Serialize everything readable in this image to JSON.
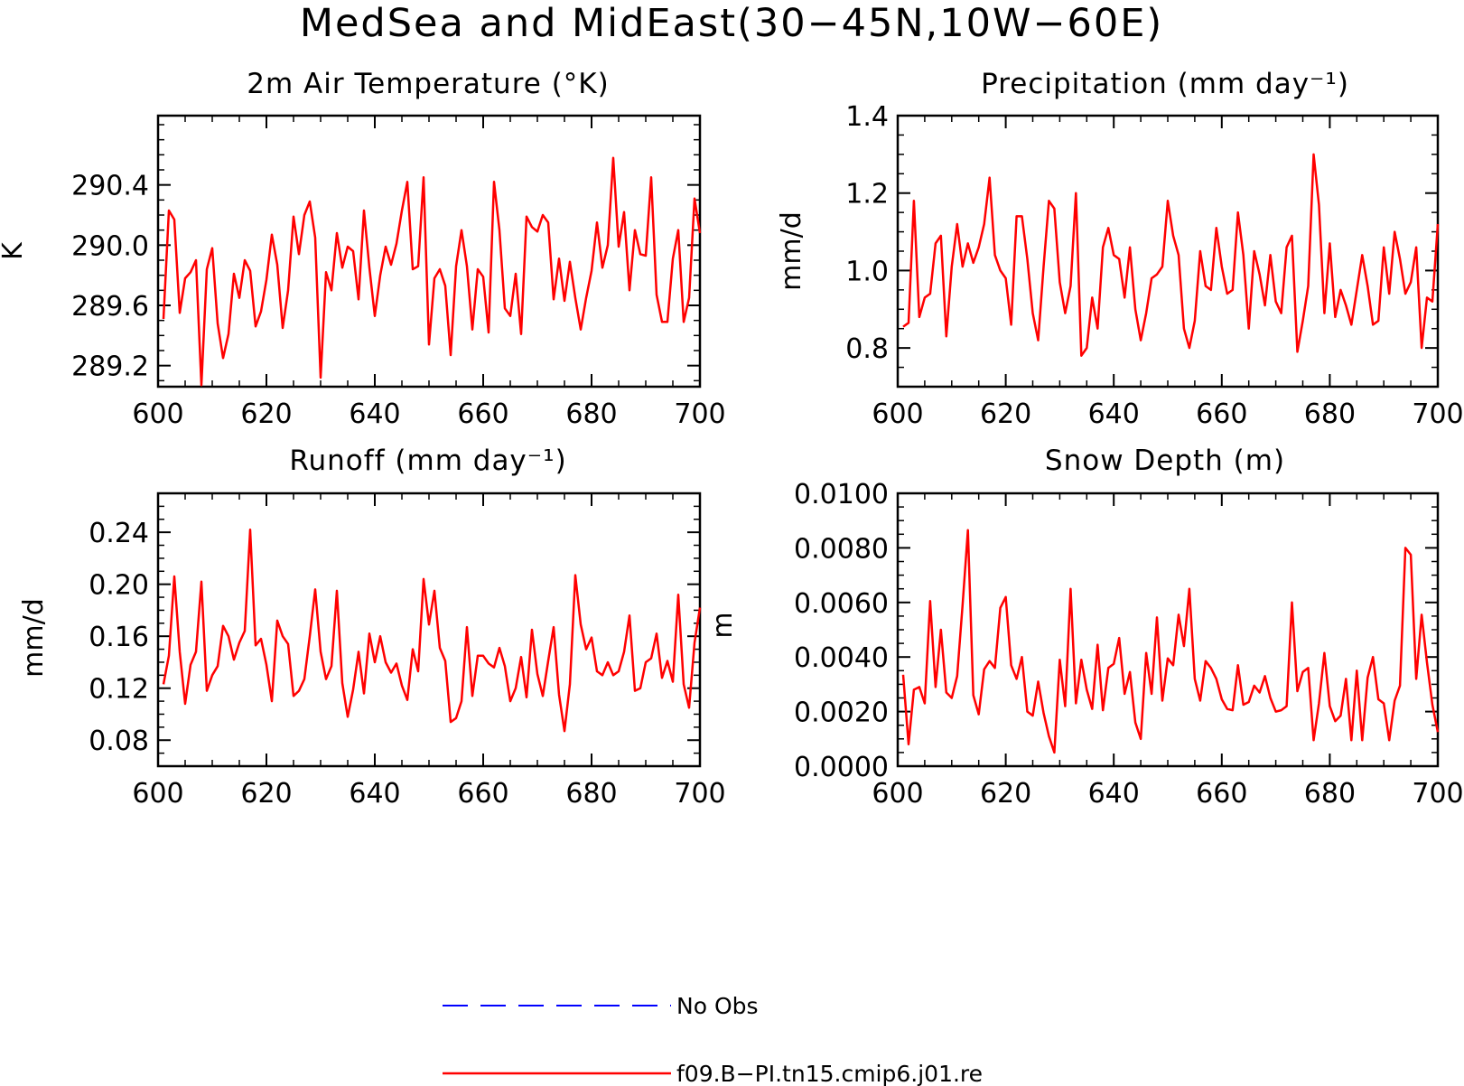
{
  "title": "MedSea and MidEast(30−45N,10W−60E)",
  "legend": [
    {
      "label": "No Obs",
      "color": "#0000ff",
      "dash": true
    },
    {
      "label": "f09.B−PI.tn15.cmip6.j01.re",
      "color": "#ff0000",
      "dash": false
    }
  ],
  "chart_data": [
    {
      "type": "line",
      "title": "2m Air Temperature (°K)",
      "ylabel": "K",
      "xlim": [
        600,
        700
      ],
      "ylim": [
        289.06,
        290.86
      ],
      "xticks": [
        600,
        620,
        640,
        660,
        680,
        700
      ],
      "yticks": [
        289.2,
        289.6,
        290.0,
        290.4
      ],
      "ytick_labels": [
        "289.2",
        "289.6",
        "290.0",
        "290.4"
      ],
      "x_start": 601,
      "series": [
        {
          "color": "#ff0000",
          "values": [
            289.51,
            290.23,
            290.17,
            289.55,
            289.78,
            289.82,
            289.9,
            289.07,
            289.84,
            289.98,
            289.48,
            289.25,
            289.41,
            289.81,
            289.65,
            289.9,
            289.83,
            289.46,
            289.56,
            289.77,
            290.07,
            289.87,
            289.45,
            289.7,
            290.19,
            289.94,
            290.2,
            290.29,
            290.05,
            289.12,
            289.82,
            289.7,
            290.08,
            289.85,
            289.99,
            289.96,
            289.64,
            290.23,
            289.85,
            289.53,
            289.8,
            289.99,
            289.87,
            290.01,
            290.23,
            290.42,
            289.84,
            289.86,
            290.45,
            289.34,
            289.78,
            289.84,
            289.73,
            289.27,
            289.86,
            290.1,
            289.86,
            289.44,
            289.84,
            289.79,
            289.42,
            290.42,
            290.1,
            289.58,
            289.53,
            289.81,
            289.41,
            290.19,
            290.12,
            290.09,
            290.2,
            290.15,
            289.64,
            289.91,
            289.63,
            289.89,
            289.65,
            289.44,
            289.65,
            289.83,
            290.15,
            289.85,
            290.0,
            290.58,
            289.99,
            290.22,
            289.7,
            290.1,
            289.94,
            289.93,
            290.45,
            289.67,
            289.49,
            289.49,
            289.91,
            290.1,
            289.49,
            289.65,
            290.31,
            290.08
          ]
        }
      ]
    },
    {
      "type": "line",
      "title": "Precipitation (mm day⁻¹)",
      "ylabel": "mm/d",
      "xlim": [
        600,
        700
      ],
      "ylim": [
        0.7,
        1.4
      ],
      "xticks": [
        600,
        620,
        640,
        660,
        680,
        700
      ],
      "yticks": [
        0.8,
        1.0,
        1.2,
        1.4
      ],
      "ytick_labels": [
        "0.8",
        "1.0",
        "1.2",
        "1.4"
      ],
      "x_start": 601,
      "series": [
        {
          "color": "#ff0000",
          "values": [
            0.855,
            0.865,
            1.18,
            0.88,
            0.93,
            0.94,
            1.07,
            1.09,
            0.83,
            1.01,
            1.12,
            1.01,
            1.07,
            1.02,
            1.06,
            1.12,
            1.24,
            1.04,
            1.0,
            0.98,
            0.86,
            1.14,
            1.14,
            1.03,
            0.89,
            0.82,
            1.01,
            1.18,
            1.16,
            0.97,
            0.89,
            0.96,
            1.2,
            0.78,
            0.8,
            0.93,
            0.85,
            1.06,
            1.11,
            1.04,
            1.03,
            0.93,
            1.06,
            0.9,
            0.82,
            0.89,
            0.98,
            0.99,
            1.01,
            1.18,
            1.09,
            1.04,
            0.85,
            0.8,
            0.87,
            1.05,
            0.96,
            0.95,
            1.11,
            1.01,
            0.94,
            0.95,
            1.15,
            1.04,
            0.85,
            1.05,
            0.99,
            0.91,
            1.04,
            0.92,
            0.89,
            1.06,
            1.09,
            0.79,
            0.87,
            0.96,
            1.3,
            1.17,
            0.89,
            1.07,
            0.88,
            0.95,
            0.91,
            0.86,
            0.95,
            1.04,
            0.96,
            0.86,
            0.87,
            1.06,
            0.94,
            1.1,
            1.03,
            0.94,
            0.97,
            1.06,
            0.8,
            0.93,
            0.92,
            1.12
          ]
        }
      ]
    },
    {
      "type": "line",
      "title": "Runoff (mm day⁻¹)",
      "ylabel": "mm/d",
      "xlim": [
        600,
        700
      ],
      "ylim": [
        0.06,
        0.27
      ],
      "xticks": [
        600,
        620,
        640,
        660,
        680,
        700
      ],
      "yticks": [
        0.08,
        0.12,
        0.16,
        0.2,
        0.24
      ],
      "ytick_labels": [
        "0.08",
        "0.12",
        "0.16",
        "0.20",
        "0.24"
      ],
      "x_start": 601,
      "series": [
        {
          "color": "#ff0000",
          "values": [
            0.123,
            0.145,
            0.206,
            0.148,
            0.108,
            0.138,
            0.148,
            0.202,
            0.118,
            0.13,
            0.137,
            0.168,
            0.16,
            0.142,
            0.155,
            0.164,
            0.242,
            0.153,
            0.158,
            0.138,
            0.11,
            0.172,
            0.16,
            0.154,
            0.114,
            0.118,
            0.127,
            0.16,
            0.196,
            0.148,
            0.127,
            0.137,
            0.195,
            0.124,
            0.098,
            0.119,
            0.148,
            0.116,
            0.162,
            0.14,
            0.16,
            0.14,
            0.132,
            0.139,
            0.122,
            0.111,
            0.15,
            0.133,
            0.204,
            0.169,
            0.195,
            0.151,
            0.141,
            0.094,
            0.097,
            0.11,
            0.167,
            0.114,
            0.145,
            0.145,
            0.139,
            0.136,
            0.151,
            0.137,
            0.11,
            0.12,
            0.144,
            0.113,
            0.165,
            0.131,
            0.114,
            0.141,
            0.167,
            0.115,
            0.087,
            0.123,
            0.207,
            0.169,
            0.15,
            0.159,
            0.133,
            0.13,
            0.14,
            0.13,
            0.133,
            0.148,
            0.176,
            0.118,
            0.12,
            0.14,
            0.143,
            0.162,
            0.128,
            0.141,
            0.125,
            0.192,
            0.123,
            0.105,
            0.155,
            0.182
          ]
        }
      ]
    },
    {
      "type": "line",
      "title": "Snow Depth (m)",
      "ylabel": "m",
      "xlim": [
        600,
        700
      ],
      "ylim": [
        0.0,
        0.01
      ],
      "xticks": [
        600,
        620,
        640,
        660,
        680,
        700
      ],
      "yticks": [
        0.0,
        0.002,
        0.004,
        0.006,
        0.008,
        0.01
      ],
      "ytick_labels": [
        "0.0000",
        "0.0020",
        "0.0040",
        "0.0060",
        "0.0080",
        "0.0100"
      ],
      "x_start": 601,
      "series": [
        {
          "color": "#ff0000",
          "values": [
            0.00335,
            0.0008,
            0.0028,
            0.0029,
            0.0023,
            0.00605,
            0.0029,
            0.005,
            0.0027,
            0.0025,
            0.0033,
            0.0059,
            0.00865,
            0.0026,
            0.0019,
            0.00355,
            0.00385,
            0.0036,
            0.0058,
            0.0062,
            0.0037,
            0.0032,
            0.004,
            0.002,
            0.00185,
            0.0031,
            0.00195,
            0.0011,
            0.0005,
            0.0039,
            0.0022,
            0.0065,
            0.0023,
            0.0039,
            0.0028,
            0.0021,
            0.00445,
            0.00205,
            0.0036,
            0.00375,
            0.0047,
            0.00265,
            0.00345,
            0.0016,
            0.001,
            0.00415,
            0.00265,
            0.00545,
            0.0024,
            0.00395,
            0.0037,
            0.00555,
            0.0044,
            0.0065,
            0.0032,
            0.0024,
            0.00385,
            0.0036,
            0.0032,
            0.00245,
            0.0021,
            0.00205,
            0.0037,
            0.00225,
            0.00235,
            0.00295,
            0.0027,
            0.0033,
            0.0025,
            0.002,
            0.00205,
            0.0022,
            0.006,
            0.00275,
            0.00345,
            0.0036,
            0.00095,
            0.0023,
            0.00415,
            0.0022,
            0.00165,
            0.00185,
            0.0032,
            0.00095,
            0.0035,
            0.00095,
            0.00325,
            0.004,
            0.00245,
            0.0023,
            0.00095,
            0.0024,
            0.00295,
            0.008,
            0.00775,
            0.0032,
            0.00555,
            0.0038,
            0.00225,
            0.00125
          ]
        }
      ]
    }
  ]
}
